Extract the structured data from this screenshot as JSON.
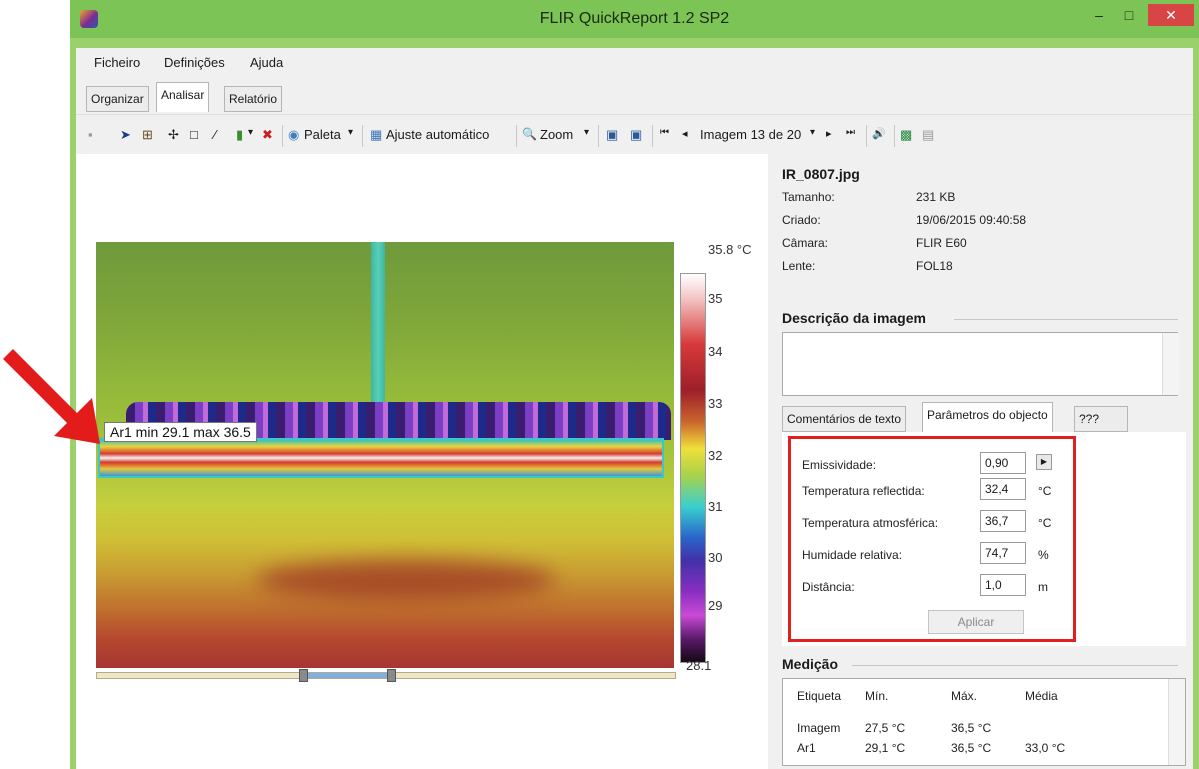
{
  "window": {
    "title": "FLIR QuickReport 1.2 SP2",
    "minimize": "–",
    "maximize": "□",
    "close": "✕"
  },
  "menu": [
    {
      "label": "Ficheiro"
    },
    {
      "label": "Definições"
    },
    {
      "label": "Ajuda"
    }
  ],
  "tabs": [
    {
      "label": "Organizar"
    },
    {
      "label": "Analisar",
      "active": true
    },
    {
      "label": "Relatório"
    }
  ],
  "toolbar": {
    "icons": [
      "save-icon",
      "pointer-icon",
      "spot-icon",
      "crosshair-icon",
      "box-icon",
      "line-icon",
      "isotherm-icon",
      "delete-icon"
    ],
    "glyphs": {
      "save": "▪",
      "pointer": "➤",
      "spot": "⊞",
      "crosshair": "✢",
      "box": "□",
      "line": "∕",
      "isotherm": "▮",
      "delete": "✖",
      "palette": "◉",
      "auto": "▦",
      "zoom": "🔍",
      "dropdown": "▾",
      "fit1": "▣",
      "fit2": "▣",
      "first": "⏮",
      "prev": "◂",
      "next": "▸",
      "last": "⏭",
      "audio": "🔊",
      "excel": "▩",
      "image": "▤"
    },
    "palette_label": "Paleta",
    "auto_adjust_label": "Ajuste automático",
    "zoom_label": "Zoom",
    "image_nav_label": "Imagem 13 de 20"
  },
  "thermal": {
    "measurement_label": "Ar1 min 29.1 max 36.5",
    "scale_max": "35.8 °C",
    "scale_ticks": [
      "35",
      "34",
      "33",
      "32",
      "31",
      "30",
      "29"
    ],
    "scale_min": "28.1"
  },
  "info": {
    "file_name": "IR_0807.jpg",
    "rows": [
      {
        "label": "Tamanho:",
        "value": "231 KB"
      },
      {
        "label": "Criado:",
        "value": "19/06/2015 09:40:58"
      },
      {
        "label": "Câmara:",
        "value": "FLIR E60"
      },
      {
        "label": "Lente:",
        "value": "FOL18"
      }
    ]
  },
  "description": {
    "heading": "Descrição da imagem",
    "text": ""
  },
  "panel_tabs": [
    {
      "label": "Comentários de texto"
    },
    {
      "label": "Parâmetros do objecto",
      "active": true
    },
    {
      "label": "???"
    }
  ],
  "params": {
    "rows": [
      {
        "label": "Emissividade:",
        "value": "0,90",
        "unit": ""
      },
      {
        "label": "Temperatura reflectida:",
        "value": "32,4",
        "unit": "°C"
      },
      {
        "label": "Temperatura atmosférica:",
        "value": "36,7",
        "unit": "°C"
      },
      {
        "label": "Humidade relativa:",
        "value": "74,7",
        "unit": "%"
      },
      {
        "label": "Distância:",
        "value": "1,0",
        "unit": "m"
      }
    ],
    "apply_label": "Aplicar",
    "arrow": "▶"
  },
  "measurement": {
    "heading": "Medição",
    "columns": [
      "Etiqueta",
      "Mín.",
      "Máx.",
      "Média"
    ],
    "rows": [
      [
        "Imagem",
        "27,5 °C",
        "36,5 °C",
        ""
      ],
      [
        "Ar1",
        "29,1 °C",
        "36,5 °C",
        "33,0 °C"
      ]
    ]
  },
  "colors": {
    "titlebar": "#7cc456",
    "highlight": "#e12020",
    "annotation_arrow": "#e41b1b"
  }
}
